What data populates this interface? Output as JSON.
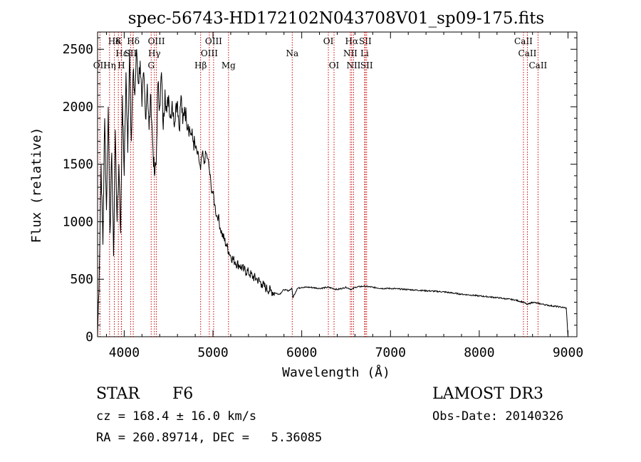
{
  "chart_data": {
    "type": "line",
    "title": "spec-56743-HD172102N043708V01_sp09-175.fits",
    "xlabel": "Wavelength (Å)",
    "ylabel": "Flux (relative)",
    "xlim": [
      3700,
      9100
    ],
    "ylim": [
      0,
      2650
    ],
    "x_ticks": [
      4000,
      5000,
      6000,
      7000,
      8000,
      9000
    ],
    "y_ticks": [
      0,
      500,
      1000,
      1500,
      2000,
      2500
    ],
    "x_tick_labels": [
      "4000",
      "5000",
      "6000",
      "7000",
      "8000",
      "9000"
    ],
    "y_tick_labels": [
      "0",
      "500",
      "1000",
      "1500",
      "2000",
      "2500"
    ],
    "grid": false,
    "series": [
      {
        "name": "flux",
        "x": [
          3700,
          3720,
          3740,
          3760,
          3780,
          3800,
          3820,
          3840,
          3860,
          3880,
          3900,
          3920,
          3940,
          3960,
          3980,
          4000,
          4020,
          4040,
          4060,
          4080,
          4100,
          4120,
          4140,
          4160,
          4180,
          4200,
          4220,
          4240,
          4260,
          4280,
          4300,
          4320,
          4340,
          4360,
          4380,
          4400,
          4420,
          4440,
          4460,
          4480,
          4500,
          4520,
          4540,
          4560,
          4580,
          4600,
          4620,
          4640,
          4660,
          4680,
          4700,
          4720,
          4740,
          4760,
          4780,
          4800,
          4820,
          4840,
          4860,
          4880,
          4900,
          4920,
          4940,
          4960,
          4980,
          5000,
          5020,
          5040,
          5060,
          5080,
          5100,
          5150,
          5200,
          5250,
          5300,
          5350,
          5400,
          5450,
          5500,
          5550,
          5600,
          5650,
          5700,
          5750,
          5800,
          5850,
          5890,
          5900,
          5950,
          6000,
          6100,
          6200,
          6300,
          6400,
          6500,
          6563,
          6600,
          6700,
          6800,
          6900,
          7000,
          7200,
          7400,
          7600,
          7800,
          8000,
          8200,
          8400,
          8498,
          8542,
          8600,
          8662,
          8700,
          8800,
          8900,
          8980,
          9000
        ],
        "values": [
          0,
          600,
          1500,
          800,
          1900,
          1100,
          2000,
          900,
          1600,
          700,
          1800,
          1000,
          1500,
          900,
          2100,
          1400,
          2300,
          1600,
          2500,
          1700,
          2300,
          2100,
          2500,
          2200,
          2400,
          2000,
          2300,
          1900,
          2200,
          1800,
          2100,
          1700,
          1400,
          1500,
          2200,
          2000,
          2300,
          1800,
          2150,
          1950,
          2100,
          1900,
          2050,
          1850,
          2000,
          2050,
          1800,
          2100,
          1850,
          2000,
          1900,
          1850,
          1800,
          1750,
          1700,
          1650,
          1600,
          1550,
          1450,
          1600,
          1500,
          1600,
          1550,
          1450,
          1300,
          1250,
          1150,
          1050,
          1050,
          950,
          900,
          800,
          700,
          650,
          620,
          580,
          560,
          520,
          500,
          460,
          420,
          400,
          380,
          370,
          410,
          400,
          420,
          340,
          420,
          430,
          430,
          420,
          430,
          410,
          430,
          410,
          430,
          440,
          430,
          420,
          420,
          410,
          400,
          390,
          370,
          355,
          340,
          320,
          300,
          280,
          300,
          290,
          285,
          270,
          260,
          250,
          0
        ]
      }
    ],
    "line_labels": [
      {
        "text": "Hδ",
        "x": 3889,
        "row": 1
      },
      {
        "text": "OII",
        "x": 3727,
        "row": 3
      },
      {
        "text": "Hε",
        "x": 3970,
        "row": 2
      },
      {
        "text": "Hη",
        "x": 3835,
        "row": 3
      },
      {
        "text": "K",
        "x": 3934,
        "row": 1
      },
      {
        "text": "H",
        "x": 3968,
        "row": 3
      },
      {
        "text": "Hδ",
        "x": 4102,
        "row": 1
      },
      {
        "text": "SII",
        "x": 4072,
        "row": 2
      },
      {
        "text": "OIII",
        "x": 4363,
        "row": 1
      },
      {
        "text": "Hγ",
        "x": 4340,
        "row": 2
      },
      {
        "text": "G",
        "x": 4304,
        "row": 3
      },
      {
        "text": "Hβ",
        "x": 4861,
        "row": 3
      },
      {
        "text": "OIII",
        "x": 5007,
        "row": 1
      },
      {
        "text": "OIII",
        "x": 4959,
        "row": 2
      },
      {
        "text": "Mg",
        "x": 5175,
        "row": 3
      },
      {
        "text": "Na",
        "x": 5893,
        "row": 2
      },
      {
        "text": "OI",
        "x": 6300,
        "row": 1
      },
      {
        "text": "OI",
        "x": 6364,
        "row": 3
      },
      {
        "text": "Hα",
        "x": 6563,
        "row": 1
      },
      {
        "text": "SII",
        "x": 6716,
        "row": 1
      },
      {
        "text": "NII",
        "x": 6548,
        "row": 2
      },
      {
        "text": "Li",
        "x": 6708,
        "row": 2
      },
      {
        "text": "NII",
        "x": 6584,
        "row": 3
      },
      {
        "text": "SII",
        "x": 6731,
        "row": 3
      },
      {
        "text": "CaII",
        "x": 8498,
        "row": 1
      },
      {
        "text": "CaII",
        "x": 8542,
        "row": 2
      },
      {
        "text": "CaII",
        "x": 8662,
        "row": 3
      }
    ]
  },
  "info": {
    "object_type": "STAR",
    "subclass": "F6",
    "survey": "LAMOST DR3",
    "redshift": "cz = 168.4 ± 16.0 km/s",
    "obs_date": "Obs-Date: 20140326",
    "coords": "RA = 260.89714, DEC =   5.36085"
  }
}
